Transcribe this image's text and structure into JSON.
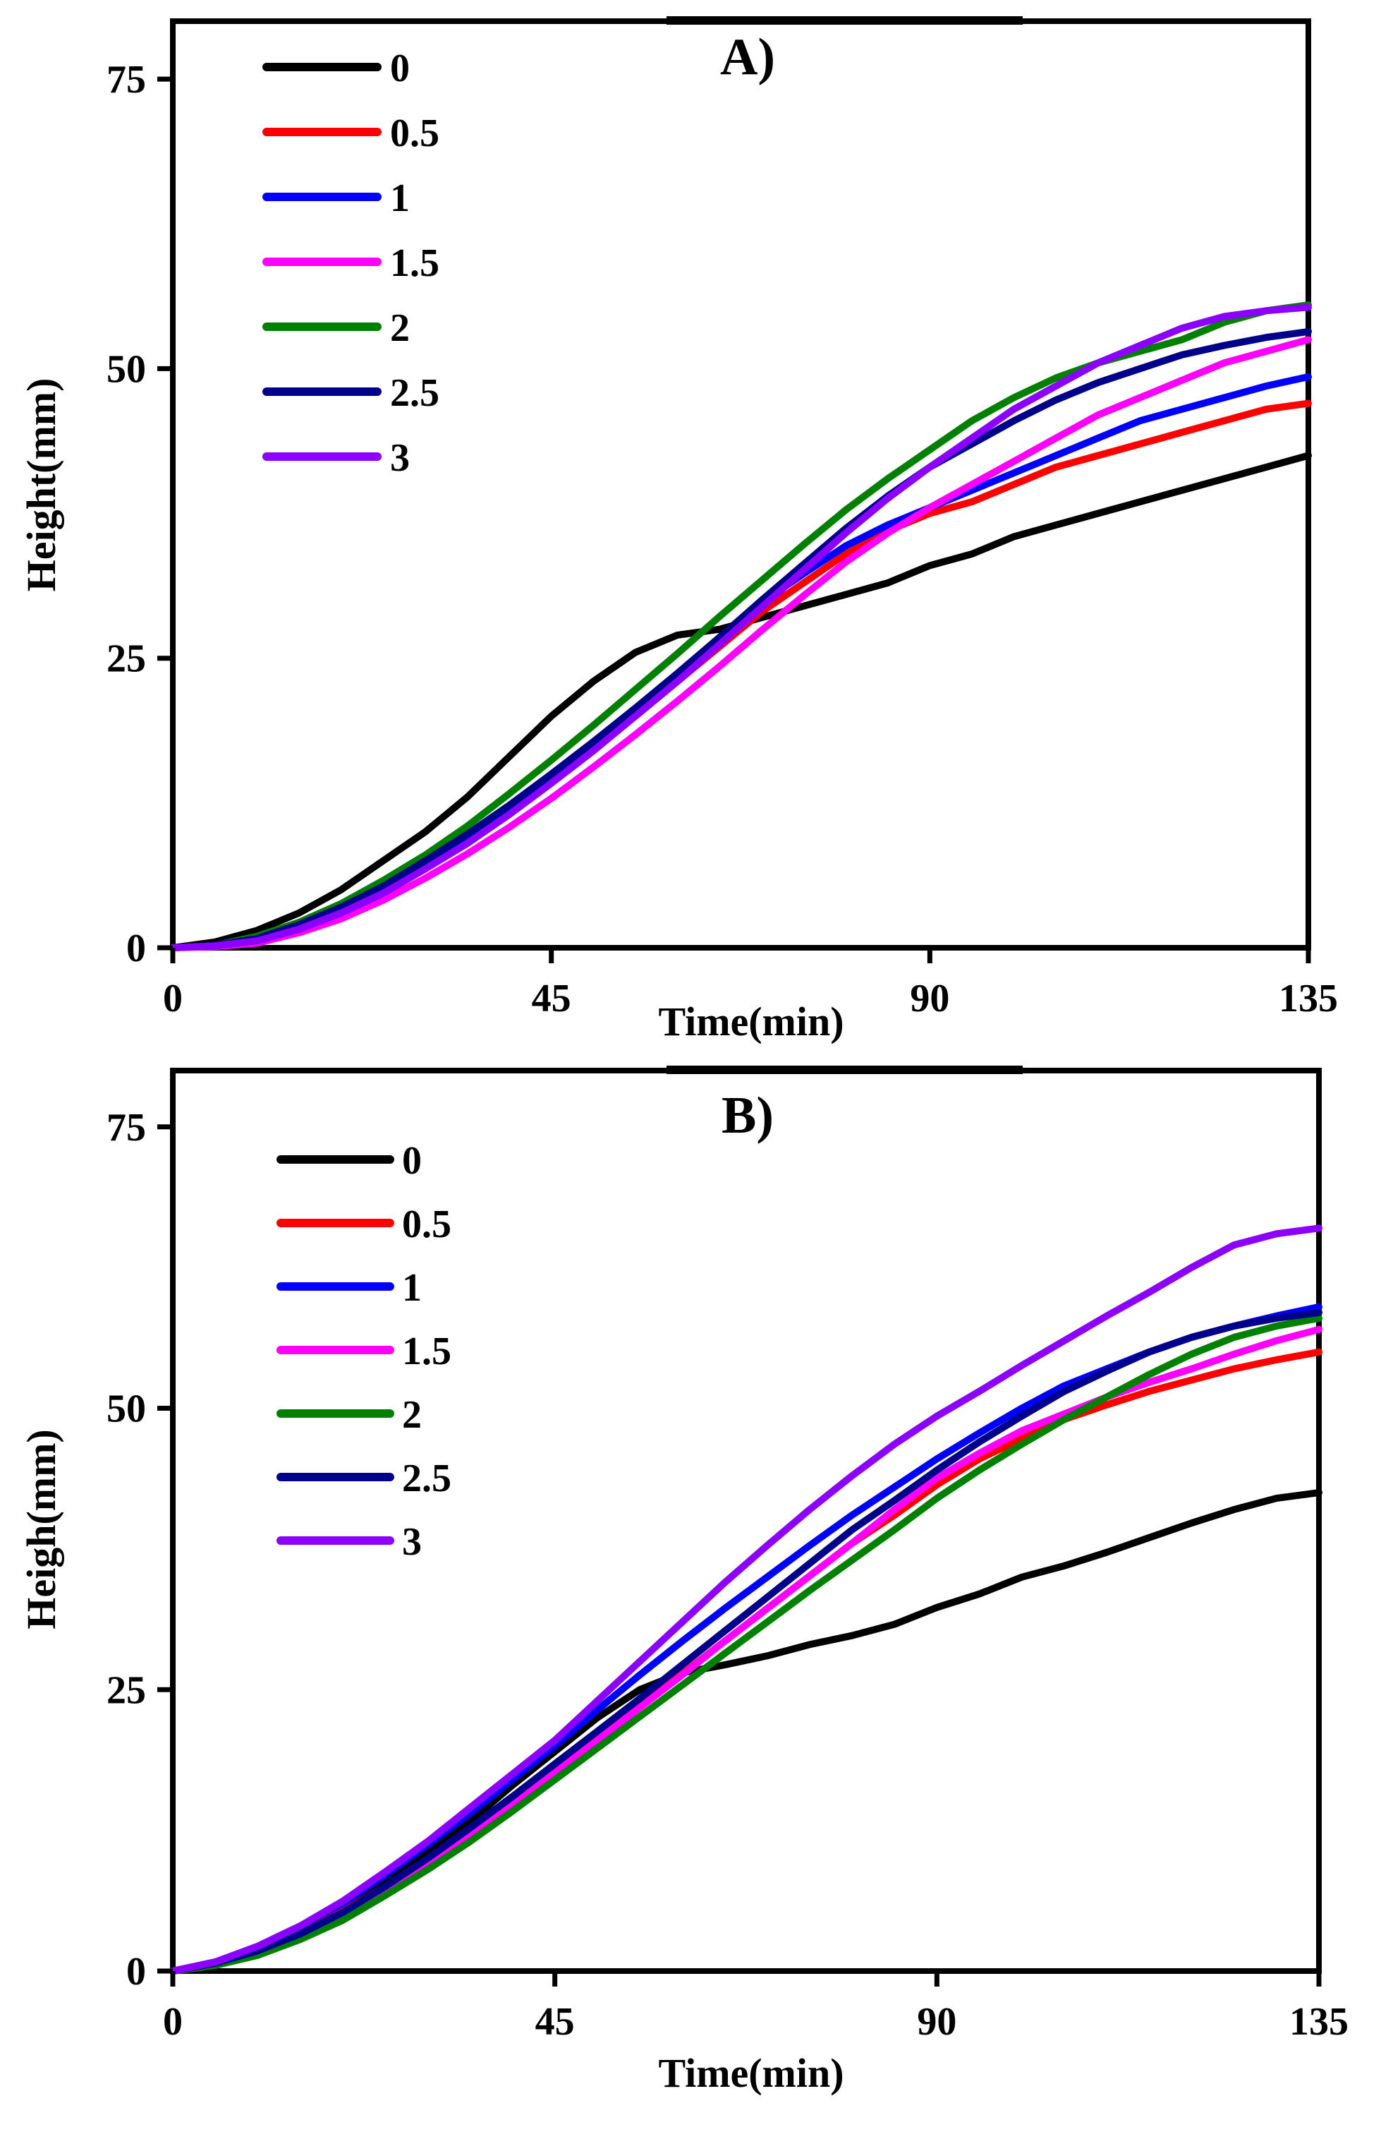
{
  "chart_data": [
    {
      "type": "line",
      "title": "A)",
      "xlabel": "Time(min)",
      "ylabel": "Height(mm)",
      "xlim": [
        0,
        135
      ],
      "ylim": [
        0,
        80
      ],
      "xticks": [
        0,
        45,
        90,
        135
      ],
      "yticks": [
        0,
        25,
        50,
        75
      ],
      "xtick_labels": [
        "0",
        "45",
        "90",
        "135"
      ],
      "ytick_labels": [
        "0",
        "25",
        "50",
        "75"
      ],
      "legend_position": "top-left",
      "x": [
        0,
        5,
        10,
        15,
        20,
        25,
        30,
        35,
        40,
        45,
        50,
        55,
        60,
        65,
        70,
        75,
        80,
        85,
        90,
        95,
        100,
        105,
        110,
        115,
        120,
        125,
        130,
        135
      ],
      "series": [
        {
          "name": "0",
          "color": "#000000",
          "values": [
            0,
            0.5,
            1.5,
            3,
            5,
            7.5,
            10,
            13,
            16.5,
            20,
            23,
            25.5,
            27,
            27.5,
            28.5,
            29.5,
            30.5,
            31.5,
            33,
            34,
            35.5,
            36.5,
            37.5,
            38.5,
            39.5,
            40.5,
            41.5,
            42.5
          ]
        },
        {
          "name": "0.5",
          "color": "#ff0000",
          "values": [
            0,
            0.2,
            0.7,
            1.8,
            3.2,
            5,
            7,
            9.3,
            11.8,
            14.5,
            17.2,
            20,
            23,
            26,
            29,
            31.5,
            34,
            36,
            37.5,
            38.5,
            40,
            41.5,
            42.5,
            43.5,
            44.5,
            45.5,
            46.5,
            47
          ]
        },
        {
          "name": "1",
          "color": "#0000ff",
          "values": [
            0,
            0.2,
            0.8,
            2,
            3.5,
            5.3,
            7.4,
            9.7,
            12.2,
            14.9,
            17.7,
            20.6,
            23.6,
            26.7,
            29.8,
            32.3,
            34.7,
            36.5,
            38,
            39.5,
            41,
            42.5,
            44,
            45.5,
            46.5,
            47.5,
            48.5,
            49.3
          ]
        },
        {
          "name": "1.5",
          "color": "#ff00ff",
          "values": [
            0,
            0.1,
            0.4,
            1.3,
            2.5,
            4.1,
            6,
            8.1,
            10.4,
            12.9,
            15.6,
            18.4,
            21.3,
            24.3,
            27.4,
            30.4,
            33.3,
            35.8,
            38,
            40,
            42,
            44,
            46,
            47.5,
            49,
            50.5,
            51.5,
            52.5
          ]
        },
        {
          "name": "2",
          "color": "#008000",
          "values": [
            0,
            0.2,
            1,
            2.2,
            3.8,
            5.8,
            8,
            10.5,
            13.3,
            16.2,
            19.2,
            22.3,
            25.4,
            28.6,
            31.7,
            34.8,
            37.8,
            40.5,
            43,
            45.5,
            47.5,
            49.2,
            50.5,
            51.5,
            52.5,
            54,
            55,
            55.5
          ]
        },
        {
          "name": "2.5",
          "color": "#00008b",
          "values": [
            0,
            0.2,
            0.8,
            2,
            3.5,
            5.3,
            7.5,
            9.8,
            12.3,
            15,
            17.8,
            20.7,
            23.7,
            26.8,
            30,
            33.1,
            36.2,
            39,
            41.5,
            43.5,
            45.5,
            47.3,
            48.8,
            50,
            51.2,
            52,
            52.7,
            53.2
          ]
        },
        {
          "name": "3",
          "color": "#8b00ff",
          "values": [
            0,
            0.15,
            0.6,
            1.6,
            3,
            4.7,
            6.8,
            9,
            11.5,
            14.2,
            17,
            20,
            23,
            26.2,
            29.4,
            32.6,
            35.8,
            38.8,
            41.5,
            44,
            46.5,
            48.5,
            50.5,
            52,
            53.5,
            54.5,
            55,
            55.3
          ]
        }
      ]
    },
    {
      "type": "line",
      "title": "B)",
      "xlabel": "Time(min)",
      "ylabel": "Heigh(mm)",
      "xlim": [
        0,
        135
      ],
      "ylim": [
        0,
        80
      ],
      "xticks": [
        0,
        45,
        90,
        135
      ],
      "yticks": [
        0,
        25,
        50,
        75
      ],
      "xtick_labels": [
        "0",
        "45",
        "90",
        "135"
      ],
      "ytick_labels": [
        "0",
        "25",
        "50",
        "75"
      ],
      "legend_position": "top-left",
      "x": [
        0,
        5,
        10,
        15,
        20,
        25,
        30,
        35,
        40,
        45,
        50,
        55,
        60,
        65,
        70,
        75,
        80,
        85,
        90,
        95,
        100,
        105,
        110,
        115,
        120,
        125,
        130,
        135
      ],
      "series": [
        {
          "name": "0",
          "color": "#000000",
          "values": [
            0,
            0.8,
            2,
            3.5,
            5.5,
            8,
            10.5,
            13.3,
            16.5,
            19.5,
            22.5,
            25,
            26.5,
            27.2,
            28,
            29,
            29.8,
            30.8,
            32.3,
            33.5,
            35,
            36,
            37.2,
            38.5,
            39.8,
            41,
            42,
            42.5
          ]
        },
        {
          "name": "0.5",
          "color": "#ff0000",
          "values": [
            0,
            0.7,
            2,
            3.4,
            5.3,
            7.5,
            10,
            12.5,
            15.2,
            18,
            20.8,
            23.6,
            26.4,
            29.3,
            32.2,
            35.1,
            38,
            40.5,
            43.2,
            45.5,
            47.3,
            49,
            50.3,
            51.5,
            52.5,
            53.5,
            54.3,
            55
          ]
        },
        {
          "name": "1",
          "color": "#0000ff",
          "values": [
            0,
            0.8,
            2.2,
            4,
            6,
            8.5,
            11.2,
            14,
            17,
            20,
            23.2,
            26.3,
            29.3,
            32.2,
            35,
            37.8,
            40.5,
            43,
            45.5,
            47.8,
            50,
            52,
            53.5,
            55,
            56.3,
            57.3,
            58.2,
            59
          ]
        },
        {
          "name": "1.5",
          "color": "#ff00ff",
          "values": [
            0,
            0.5,
            1.5,
            3,
            4.8,
            7,
            9.5,
            12,
            14.8,
            17.6,
            20.5,
            23.4,
            26.3,
            29.3,
            32.2,
            35.1,
            38,
            41,
            43.8,
            46,
            48,
            49.5,
            51,
            52.3,
            53.5,
            54.8,
            56,
            57
          ]
        },
        {
          "name": "2",
          "color": "#008000",
          "values": [
            0,
            0.5,
            1.4,
            2.8,
            4.5,
            6.7,
            9,
            11.5,
            14.2,
            17,
            19.8,
            22.6,
            25.4,
            28.2,
            31,
            33.8,
            36.5,
            39.2,
            42,
            44.5,
            46.8,
            49,
            51,
            53,
            54.8,
            56.3,
            57.3,
            58
          ]
        },
        {
          "name": "2.5",
          "color": "#00008b",
          "values": [
            0,
            0.7,
            1.8,
            3.3,
            5.2,
            7.5,
            10,
            12.7,
            15.5,
            18.4,
            21.3,
            24.2,
            27.2,
            30.2,
            33.2,
            36.2,
            39.2,
            41.8,
            44.5,
            47,
            49.3,
            51.5,
            53.3,
            55,
            56.3,
            57.3,
            58,
            58.5
          ]
        },
        {
          "name": "3",
          "color": "#8b00ff",
          "values": [
            0,
            0.8,
            2.2,
            4,
            6.2,
            8.8,
            11.5,
            14.5,
            17.5,
            20.5,
            24,
            27.5,
            31,
            34.5,
            37.8,
            41,
            44,
            46.8,
            49.3,
            51.5,
            53.8,
            56,
            58.2,
            60.3,
            62.5,
            64.5,
            65.5,
            66
          ]
        }
      ]
    }
  ]
}
